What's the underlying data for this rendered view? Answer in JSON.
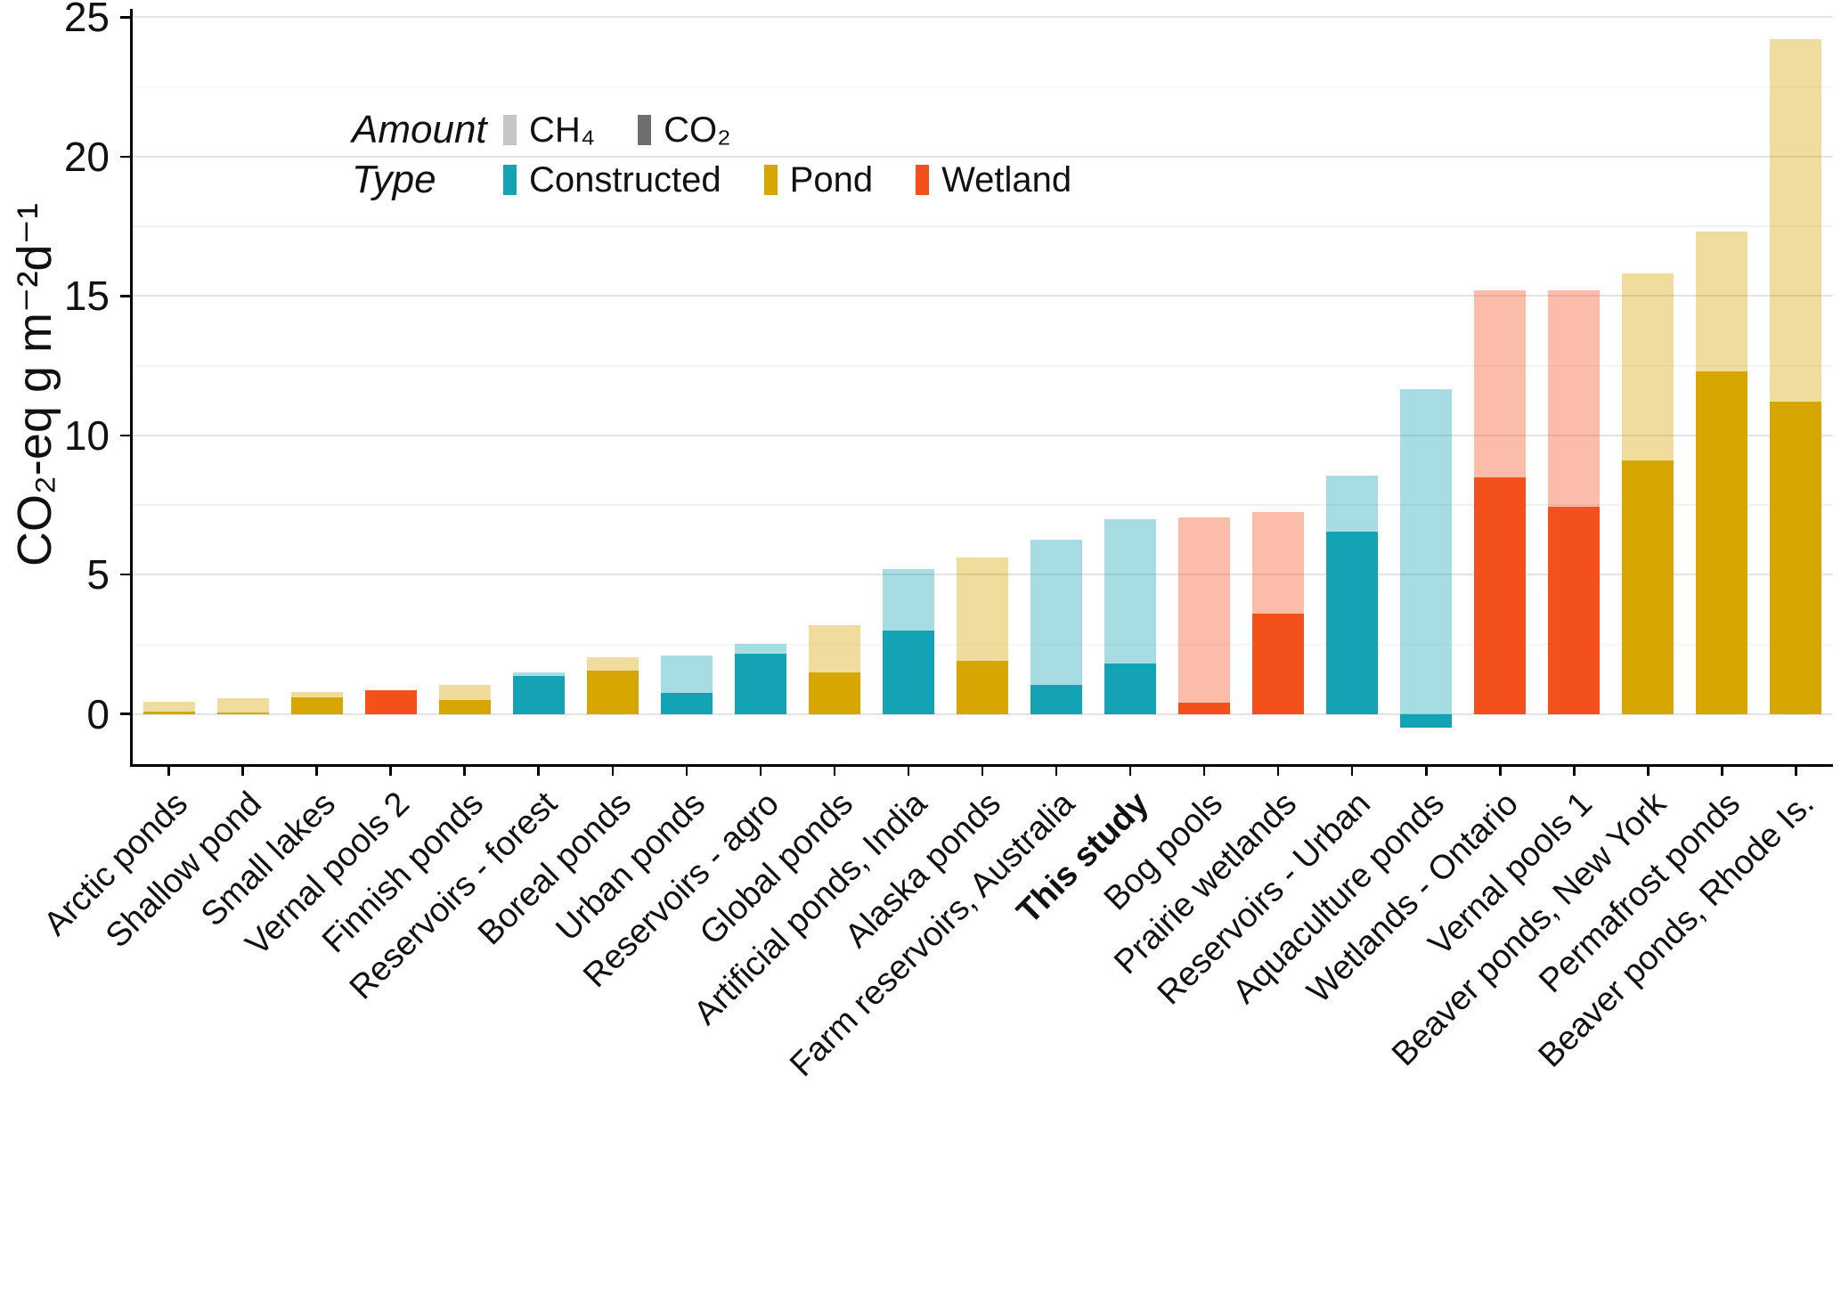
{
  "figure": {
    "legend": {
      "amount_title": "Amount",
      "type_title": "Type",
      "amount_items": [
        {
          "label": "CH₄",
          "color": "#C6C6C6"
        },
        {
          "label": "CO₂",
          "color": "#6E6E6E"
        }
      ],
      "type_items": [
        {
          "label": "Constructed",
          "color": "#14A3B4"
        },
        {
          "label": "Pond",
          "color": "#D8A600"
        },
        {
          "label": "Wetland",
          "color": "#F4501C"
        }
      ]
    }
  },
  "chart_data": {
    "type": "bar",
    "stacked": true,
    "title": "",
    "xlabel": "",
    "ylabel": "CO₂-eq g m⁻²d⁻¹",
    "ylim": [
      -1.8,
      25.3
    ],
    "yticks": [
      0,
      5,
      10,
      15,
      20,
      25
    ],
    "yticks_minor": [
      2.5,
      7.5,
      12.5,
      17.5,
      22.5
    ],
    "grid": "horizontal-only",
    "legend_position": "inside-top-left",
    "series_note": "Stacked bars: solid segment = CO2 amount, translucent segment = CH4 amount; bar color encodes Type",
    "type_colors": {
      "Constructed": "#14A3B4",
      "Pond": "#D8A600",
      "Wetland": "#F4501C"
    },
    "ch4_alpha": 0.38,
    "categories": [
      "Arctic ponds",
      "Shallow pond",
      "Small lakes",
      "Vernal pools 2",
      "Finnish ponds",
      "Reservoirs - forest",
      "Boreal ponds",
      "Urban ponds",
      "Reservoirs - agro",
      "Global ponds",
      "Artificial ponds, India",
      "Alaska ponds",
      "Farm reservoirs, Australia",
      "This study",
      "Bog pools",
      "Prairie wetlands",
      "Reservoirs - Urban",
      "Aquaculture ponds",
      "Wetlands - Ontario",
      "Vernal pools 1",
      "Beaver ponds, New York",
      "Permafrost ponds",
      "Beaver ponds, Rhode Is."
    ],
    "bars": [
      {
        "label": "Arctic ponds",
        "type": "Pond",
        "co2": 0.1,
        "total": 0.45,
        "bold": false
      },
      {
        "label": "Shallow pond",
        "type": "Pond",
        "co2": 0.05,
        "total": 0.55,
        "bold": false
      },
      {
        "label": "Small lakes",
        "type": "Pond",
        "co2": 0.6,
        "total": 0.8,
        "bold": false
      },
      {
        "label": "Vernal pools 2",
        "type": "Wetland",
        "co2": 0.85,
        "total": 0.85,
        "bold": false
      },
      {
        "label": "Finnish ponds",
        "type": "Pond",
        "co2": 0.5,
        "total": 1.05,
        "bold": false
      },
      {
        "label": "Reservoirs - forest",
        "type": "Constructed",
        "co2": 1.35,
        "total": 1.5,
        "bold": false
      },
      {
        "label": "Boreal ponds",
        "type": "Pond",
        "co2": 1.55,
        "total": 2.05,
        "bold": false
      },
      {
        "label": "Urban ponds",
        "type": "Constructed",
        "co2": 0.75,
        "total": 2.1,
        "bold": false
      },
      {
        "label": "Reservoirs - agro",
        "type": "Constructed",
        "co2": 2.15,
        "total": 2.5,
        "bold": false
      },
      {
        "label": "Global ponds",
        "type": "Pond",
        "co2": 1.5,
        "total": 3.2,
        "bold": false
      },
      {
        "label": "Artificial ponds, India",
        "type": "Constructed",
        "co2": 3.0,
        "total": 5.2,
        "bold": false
      },
      {
        "label": "Alaska ponds",
        "type": "Pond",
        "co2": 1.9,
        "total": 5.6,
        "bold": false
      },
      {
        "label": "Farm reservoirs, Australia",
        "type": "Constructed",
        "co2": 1.05,
        "total": 6.25,
        "bold": false
      },
      {
        "label": "This study",
        "type": "Constructed",
        "co2": 1.8,
        "total": 7.0,
        "bold": true
      },
      {
        "label": "Bog pools",
        "type": "Wetland",
        "co2": 0.4,
        "total": 7.05,
        "bold": false
      },
      {
        "label": "Prairie wetlands",
        "type": "Wetland",
        "co2": 3.6,
        "total": 7.25,
        "bold": false
      },
      {
        "label": "Reservoirs - Urban",
        "type": "Constructed",
        "co2": 6.55,
        "total": 8.55,
        "bold": false
      },
      {
        "label": "Aquaculture ponds",
        "type": "Constructed",
        "co2": -0.5,
        "total": 11.65,
        "bold": false
      },
      {
        "label": "Wetlands - Ontario",
        "type": "Wetland",
        "co2": 8.5,
        "total": 15.2,
        "bold": false
      },
      {
        "label": "Vernal pools 1",
        "type": "Wetland",
        "co2": 7.45,
        "total": 15.2,
        "bold": false
      },
      {
        "label": "Beaver ponds, New York",
        "type": "Pond",
        "co2": 9.1,
        "total": 15.8,
        "bold": false
      },
      {
        "label": "Permafrost ponds",
        "type": "Pond",
        "co2": 12.3,
        "total": 17.3,
        "bold": false
      },
      {
        "label": "Beaver ponds, Rhode Is.",
        "type": "Pond",
        "co2": 11.2,
        "total": 24.2,
        "bold": false
      }
    ]
  }
}
